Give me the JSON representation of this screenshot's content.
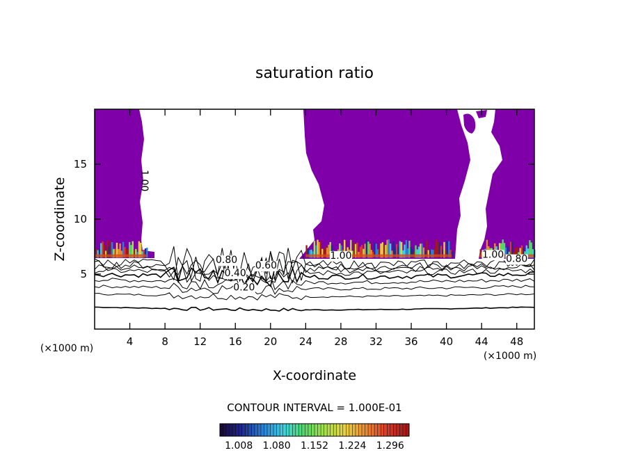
{
  "chart_data": {
    "type": "contour",
    "title": "saturation ratio",
    "xlabel": "X-coordinate",
    "ylabel": "Z-coordinate",
    "x_unit_left": "(×1000 m)",
    "x_unit_right": "(×1000 m)",
    "xlim": [
      0,
      50
    ],
    "ylim": [
      0,
      20
    ],
    "x_ticks": [
      4,
      8,
      12,
      16,
      20,
      24,
      28,
      32,
      36,
      40,
      44,
      48
    ],
    "y_ticks": [
      5,
      10,
      15
    ],
    "grid": false,
    "contour_interval_text": "CONTOUR INTERVAL = 1.000E-01",
    "contour_labels": [
      {
        "text": "1.00",
        "x": 5.3,
        "z": 13.5,
        "rotated": true
      },
      {
        "text": "0.80",
        "x": 15.0,
        "z": 6.0
      },
      {
        "text": "0.60",
        "x": 19.5,
        "z": 5.5
      },
      {
        "text": "0.40",
        "x": 16.0,
        "z": 4.8
      },
      {
        "text": "0.20",
        "x": 17.0,
        "z": 3.5
      },
      {
        "text": "1.00",
        "x": 28.0,
        "z": 6.4
      },
      {
        "text": "1.00",
        "x": 45.3,
        "z": 6.5
      },
      {
        "text": "0.80",
        "x": 48.0,
        "z": 6.1
      }
    ],
    "isoline_levels_z": [
      2.0,
      3.2,
      3.9,
      4.5,
      5.0,
      5.35,
      5.65,
      5.9,
      6.1
    ],
    "saturated_regions": [
      {
        "name": "west",
        "x_range": [
          0,
          6.0
        ],
        "z_range": [
          6.5,
          20
        ]
      },
      {
        "name": "central",
        "x_range": [
          23.5,
          41.0
        ],
        "z_range": [
          6.5,
          20
        ]
      },
      {
        "name": "east",
        "x_range": [
          43.5,
          50
        ],
        "z_range": [
          6.5,
          20
        ]
      }
    ],
    "colorbar": {
      "labels": [
        "1.008",
        "1.080",
        "1.152",
        "1.224",
        "1.296"
      ],
      "values": [
        1.008,
        1.08,
        1.152,
        1.224,
        1.296
      ],
      "colors": [
        "#1a0a3a",
        "#1f2a8f",
        "#2a7fd6",
        "#3fd0e0",
        "#55d86a",
        "#a8e04a",
        "#e8d040",
        "#e88a30",
        "#d83a2a",
        "#a01818"
      ]
    },
    "fill_color": "#7f00a8"
  }
}
